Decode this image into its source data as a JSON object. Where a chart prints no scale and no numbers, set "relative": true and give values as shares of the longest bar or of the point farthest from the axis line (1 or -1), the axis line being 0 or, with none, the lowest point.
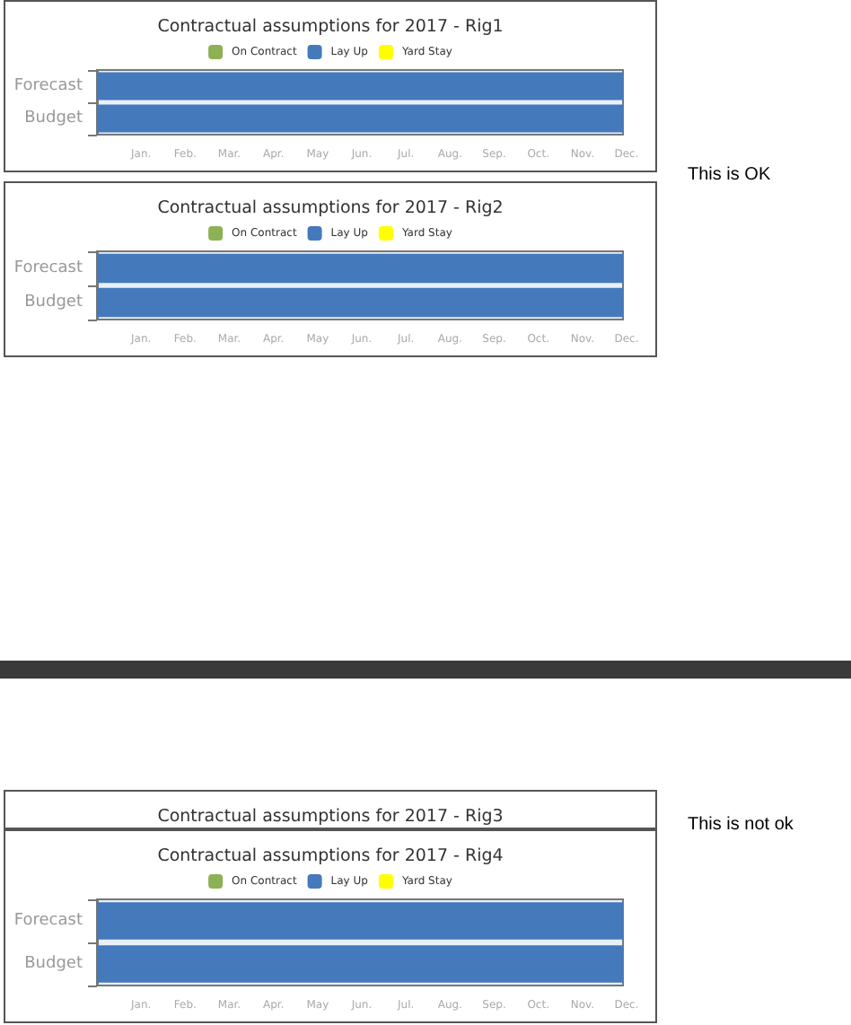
{
  "chart_data": [
    {
      "type": "bar",
      "title": "Contractual assumptions for 2017 - Rig1",
      "orientation": "horizontal",
      "relative": true,
      "legend": "top",
      "categories": [
        "Forecast",
        "Budget"
      ],
      "series": [
        {
          "name": "On Contract",
          "color": "#8db255",
          "values": [
            null,
            null
          ]
        },
        {
          "name": "Lay Up",
          "color": "#4479bc",
          "values": [
            1,
            1
          ]
        },
        {
          "name": "Yard Stay",
          "color": "#ffff00",
          "values": [
            null,
            null
          ]
        }
      ],
      "annotations": [
        "Jan.",
        "Feb.",
        "Mar.",
        "Apr.",
        "May",
        "Jun.",
        "Jul.",
        "Aug.",
        "Sep.",
        "Oct.",
        "Nov.",
        "Dec."
      ]
    },
    {
      "type": "bar",
      "title": "Contractual assumptions for 2017 - Rig2",
      "orientation": "horizontal",
      "relative": true,
      "legend": "top",
      "categories": [
        "Forecast",
        "Budget"
      ],
      "series": [
        {
          "name": "On Contract",
          "color": "#8db255",
          "values": [
            null,
            null
          ]
        },
        {
          "name": "Lay Up",
          "color": "#4479bc",
          "values": [
            1,
            1
          ]
        },
        {
          "name": "Yard Stay",
          "color": "#ffff00",
          "values": [
            null,
            null
          ]
        }
      ],
      "annotations": [
        "Jan.",
        "Feb.",
        "Mar.",
        "Apr.",
        "May",
        "Jun.",
        "Jul.",
        "Aug.",
        "Sep.",
        "Oct.",
        "Nov.",
        "Dec."
      ]
    },
    {
      "type": "other",
      "annotations": [
        "This is OK"
      ]
    },
    {
      "type": "other",
      "title": "Contractual assumptions for 2017 - Rig3",
      "annotations": [
        "This is not ok"
      ]
    },
    {
      "type": "bar",
      "title": "Contractual assumptions for 2017 - Rig4",
      "orientation": "horizontal",
      "relative": true,
      "legend": "top",
      "categories": [
        "Forecast",
        "Budget"
      ],
      "series": [
        {
          "name": "On Contract",
          "color": "#8db255",
          "values": [
            null,
            null
          ]
        },
        {
          "name": "Lay Up",
          "color": "#4479bc",
          "values": [
            1,
            1
          ]
        },
        {
          "name": "Yard Stay",
          "color": "#ffff00",
          "values": [
            null,
            null
          ]
        }
      ],
      "annotations": [
        "Jan.",
        "Feb.",
        "Mar.",
        "Apr.",
        "May",
        "Jun.",
        "Jul.",
        "Aug.",
        "Sep.",
        "Oct.",
        "Nov.",
        "Dec."
      ]
    }
  ]
}
